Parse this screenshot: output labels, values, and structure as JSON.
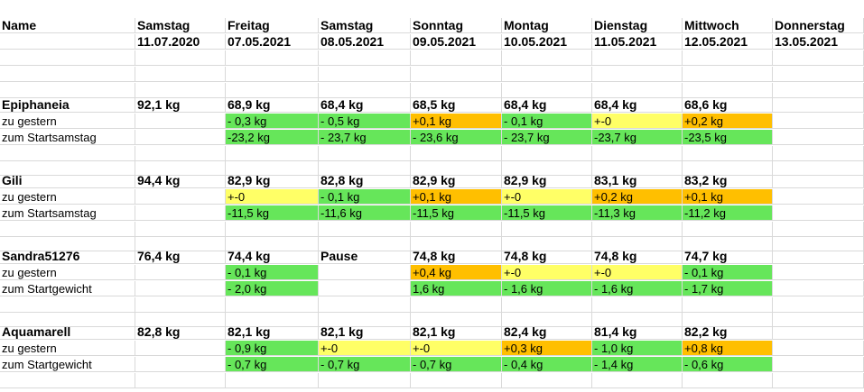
{
  "header": {
    "name_label": "Name",
    "days": [
      {
        "weekday": "Samstag",
        "date": "11.07.2020"
      },
      {
        "weekday": "Freitag",
        "date": "07.05.2021"
      },
      {
        "weekday": "Samstag",
        "date": "08.05.2021"
      },
      {
        "weekday": "Sonntag",
        "date": "09.05.2021"
      },
      {
        "weekday": "Montag",
        "date": "10.05.2021"
      },
      {
        "weekday": "Dienstag",
        "date": "11.05.2021"
      },
      {
        "weekday": "Mittwoch",
        "date": "12.05.2021"
      },
      {
        "weekday": "Donnerstag",
        "date": "13.05.2021"
      }
    ]
  },
  "colors": {
    "green": "#66e65a",
    "yellow": "#ffff66",
    "orange": "#ffbf00"
  },
  "people": [
    {
      "name": "Epiphaneia",
      "start": "92,1 kg",
      "weights": [
        "68,9 kg",
        "68,4 kg",
        "68,5 kg",
        "68,4 kg",
        "68,4 kg",
        "68,6 kg"
      ],
      "row2_label": "zu gestern",
      "row2": [
        {
          "v": "- 0,3 kg",
          "c": "green"
        },
        {
          "v": "- 0,5 kg",
          "c": "green"
        },
        {
          "v": "+0,1 kg",
          "c": "orange"
        },
        {
          "v": "- 0,1 kg",
          "c": "green"
        },
        {
          "v": "+-0",
          "c": "yellow"
        },
        {
          "v": "+0,2 kg",
          "c": "orange"
        }
      ],
      "row3_label": "zum Startsamstag",
      "row3": [
        {
          "v": "-23,2 kg",
          "c": "green"
        },
        {
          "v": "- 23,7 kg",
          "c": "green"
        },
        {
          "v": "- 23,6 kg",
          "c": "green"
        },
        {
          "v": "- 23,7 kg",
          "c": "green"
        },
        {
          "v": "-23,7 kg",
          "c": "green"
        },
        {
          "v": "-23,5 kg",
          "c": "green"
        }
      ]
    },
    {
      "name": "Gili",
      "start": "94,4 kg",
      "weights": [
        "82,9 kg",
        "82,8 kg",
        "82,9 kg",
        "82,9 kg",
        "83,1 kg",
        "83,2 kg"
      ],
      "row2_label": "zu gestern",
      "row2": [
        {
          "v": "+-0",
          "c": "yellow"
        },
        {
          "v": "- 0,1 kg",
          "c": "green"
        },
        {
          "v": "+0,1 kg",
          "c": "orange"
        },
        {
          "v": "+-0",
          "c": "yellow"
        },
        {
          "v": "+0,2 kg",
          "c": "orange"
        },
        {
          "v": "+0,1 kg",
          "c": "orange"
        }
      ],
      "row3_label": "zum Startsamstag",
      "row3": [
        {
          "v": "-11,5 kg",
          "c": "green"
        },
        {
          "v": "-11,6 kg",
          "c": "green"
        },
        {
          "v": "-11,5 kg",
          "c": "green"
        },
        {
          "v": "-11,5 kg",
          "c": "green"
        },
        {
          "v": "-11,3 kg",
          "c": "green"
        },
        {
          "v": "-11,2 kg",
          "c": "green"
        }
      ]
    },
    {
      "name": "Sandra51276",
      "start": "76,4 kg",
      "weights": [
        "74,4 kg",
        "Pause",
        "74,8 kg",
        "74,8 kg",
        "74,8 kg",
        "74,7 kg"
      ],
      "row2_label": "zu gestern",
      "row2": [
        {
          "v": "- 0,1 kg",
          "c": "green"
        },
        {
          "v": "",
          "c": ""
        },
        {
          "v": "+0,4 kg",
          "c": "orange"
        },
        {
          "v": "+-0",
          "c": "yellow"
        },
        {
          "v": "+-0",
          "c": "yellow"
        },
        {
          "v": "- 0,1 kg",
          "c": "green"
        }
      ],
      "row3_label": "zum Startgewicht",
      "row3": [
        {
          "v": "- 2,0 kg",
          "c": "green"
        },
        {
          "v": "",
          "c": ""
        },
        {
          "v": " 1,6 kg",
          "c": "green"
        },
        {
          "v": "- 1,6 kg",
          "c": "green"
        },
        {
          "v": "- 1,6 kg",
          "c": "green"
        },
        {
          "v": "- 1,7 kg",
          "c": "green"
        }
      ]
    },
    {
      "name": "Aquamarell",
      "start": "82,8 kg",
      "weights": [
        "82,1 kg",
        "82,1 kg",
        "82,1 kg",
        "82,4 kg",
        "81,4 kg",
        "82,2 kg"
      ],
      "row2_label": "zu gestern",
      "row2": [
        {
          "v": "- 0,9 kg",
          "c": "green"
        },
        {
          "v": "+-0",
          "c": "yellow"
        },
        {
          "v": "+-0",
          "c": "yellow"
        },
        {
          "v": "+0,3 kg",
          "c": "orange"
        },
        {
          "v": "- 1,0 kg",
          "c": "green"
        },
        {
          "v": "+0,8 kg",
          "c": "orange"
        }
      ],
      "row3_label": "zum Startgewicht",
      "row3": [
        {
          "v": "- 0,7 kg",
          "c": "green"
        },
        {
          "v": "- 0,7 kg",
          "c": "green"
        },
        {
          "v": "- 0,7 kg",
          "c": "green"
        },
        {
          "v": "- 0,4 kg",
          "c": "green"
        },
        {
          "v": "- 1,4 kg",
          "c": "green"
        },
        {
          "v": "- 0,6 kg",
          "c": "green"
        }
      ]
    }
  ]
}
